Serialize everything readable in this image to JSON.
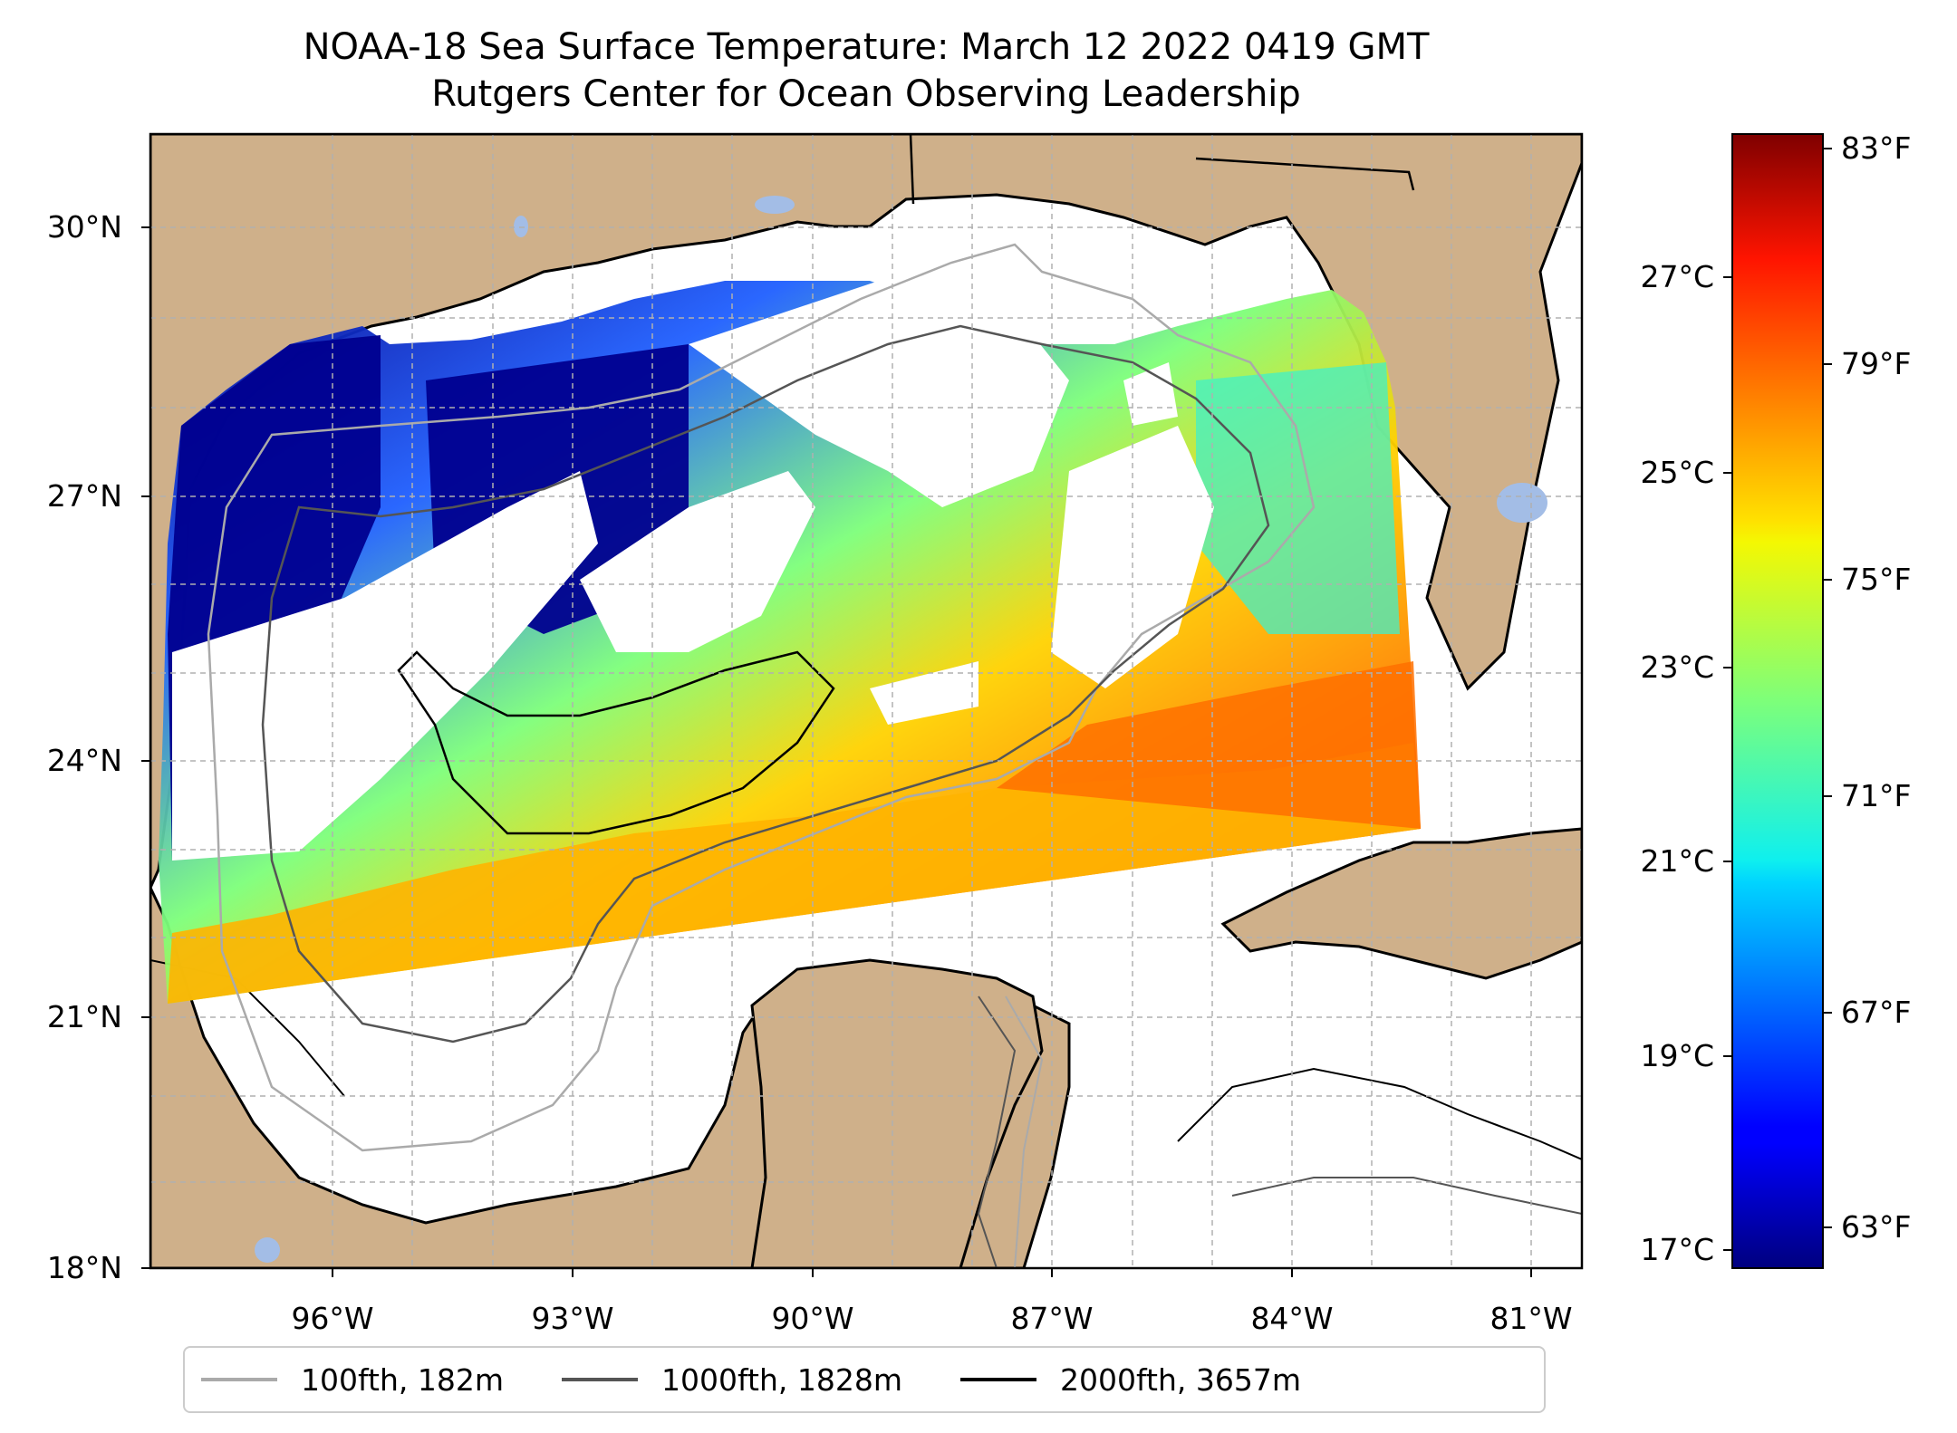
{
  "title": {
    "line1": "NOAA-18 Sea Surface Temperature: March 12 2022 0419 GMT",
    "line2": "Rutgers Center for Ocean Observing Leadership"
  },
  "map": {
    "lon_range": [
      -98.2,
      -80.3
    ],
    "lat_range": [
      18.0,
      31.0
    ],
    "lat_ticks": [
      "30°N",
      "27°N",
      "24°N",
      "21°N",
      "18°N"
    ],
    "lon_ticks": [
      "96°W",
      "93°W",
      "90°W",
      "87°W",
      "84°W",
      "81°W"
    ],
    "grid": true,
    "land_color": "#cfb08a",
    "lake_color": "#a3bde6"
  },
  "colorbar": {
    "colormap": "jet",
    "celsius_ticks": [
      "27°C",
      "25°C",
      "23°C",
      "21°C",
      "19°C",
      "17°C"
    ],
    "fahrenheit_ticks": [
      "83°F",
      "79°F",
      "75°F",
      "71°F",
      "67°F",
      "63°F"
    ],
    "range_f": [
      62.5,
      84.0
    ]
  },
  "legend": [
    {
      "label": "100fth, 182m",
      "color": "#aaaaaa"
    },
    {
      "label": "1000fth, 1828m",
      "color": "#555555"
    },
    {
      "label": "2000fth, 3657m",
      "color": "#000000"
    }
  ]
}
